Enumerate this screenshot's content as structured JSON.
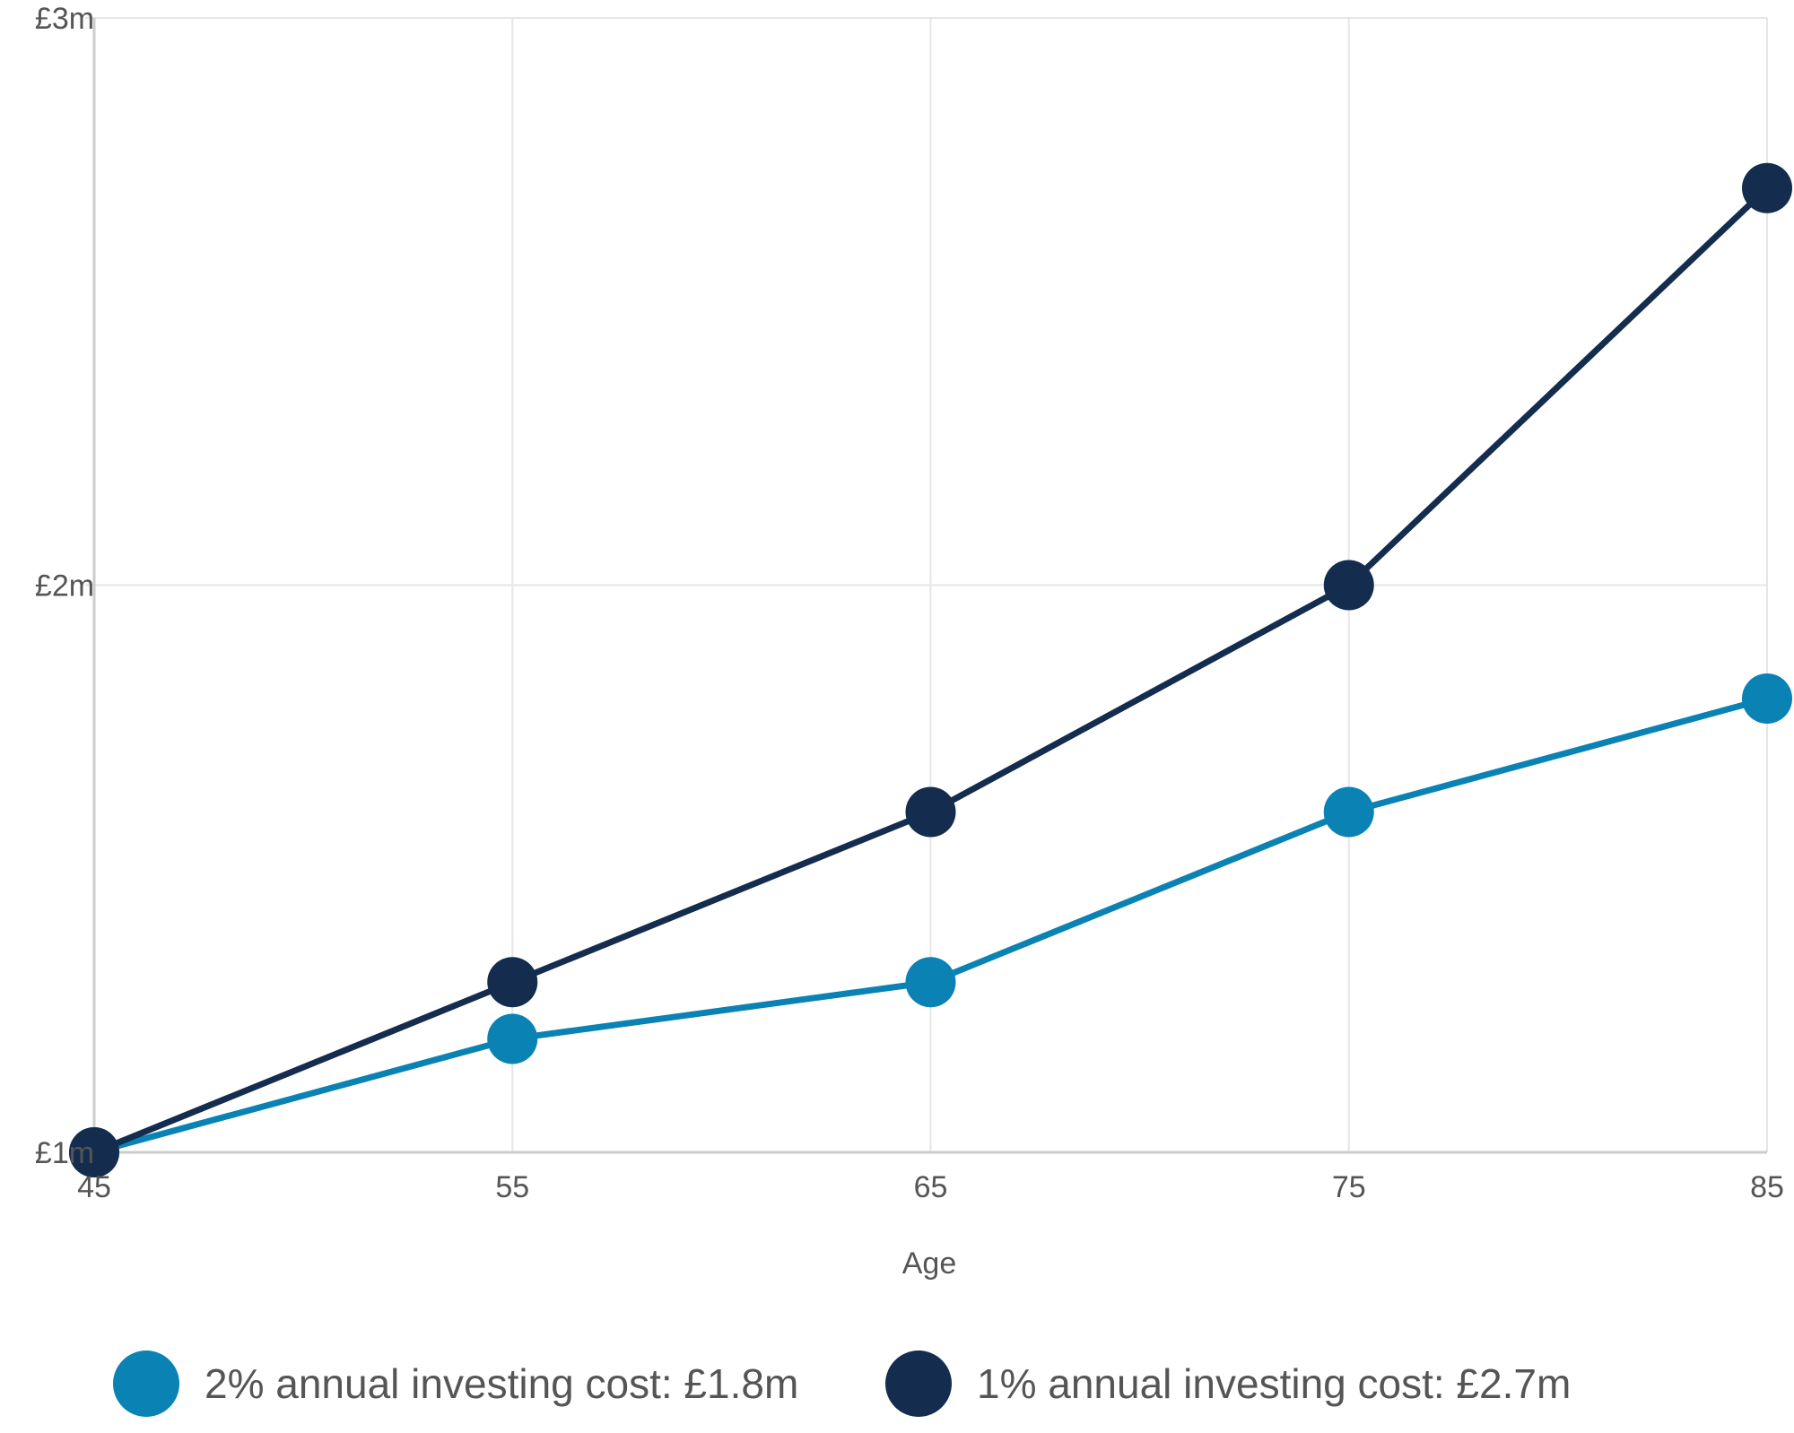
{
  "chart_data": {
    "type": "line",
    "title": "",
    "xlabel": "Age",
    "ylabel": "",
    "x": [
      45,
      55,
      65,
      75,
      85
    ],
    "xlim": [
      45,
      85
    ],
    "ylim": [
      1,
      3
    ],
    "y_unit": "£m",
    "x_ticks": [
      "45",
      "55",
      "65",
      "75",
      "85"
    ],
    "y_ticks": [
      {
        "value": 1,
        "label": "£1m"
      },
      {
        "value": 2,
        "label": "£2m"
      },
      {
        "value": 3,
        "label": "£3m"
      }
    ],
    "grid": true,
    "legend_position": "bottom",
    "series": [
      {
        "name": "2% annual investing cost: £1.8m",
        "color": "#0a82b4",
        "values": [
          1.0,
          1.2,
          1.3,
          1.6,
          1.8
        ]
      },
      {
        "name": "1% annual investing cost: £2.7m",
        "color": "#142c4e",
        "values": [
          1.0,
          1.3,
          1.6,
          2.0,
          2.7
        ]
      }
    ]
  },
  "colors": {
    "grid": "#e6e6e6",
    "axis": "#cccccc",
    "text": "#555555"
  }
}
